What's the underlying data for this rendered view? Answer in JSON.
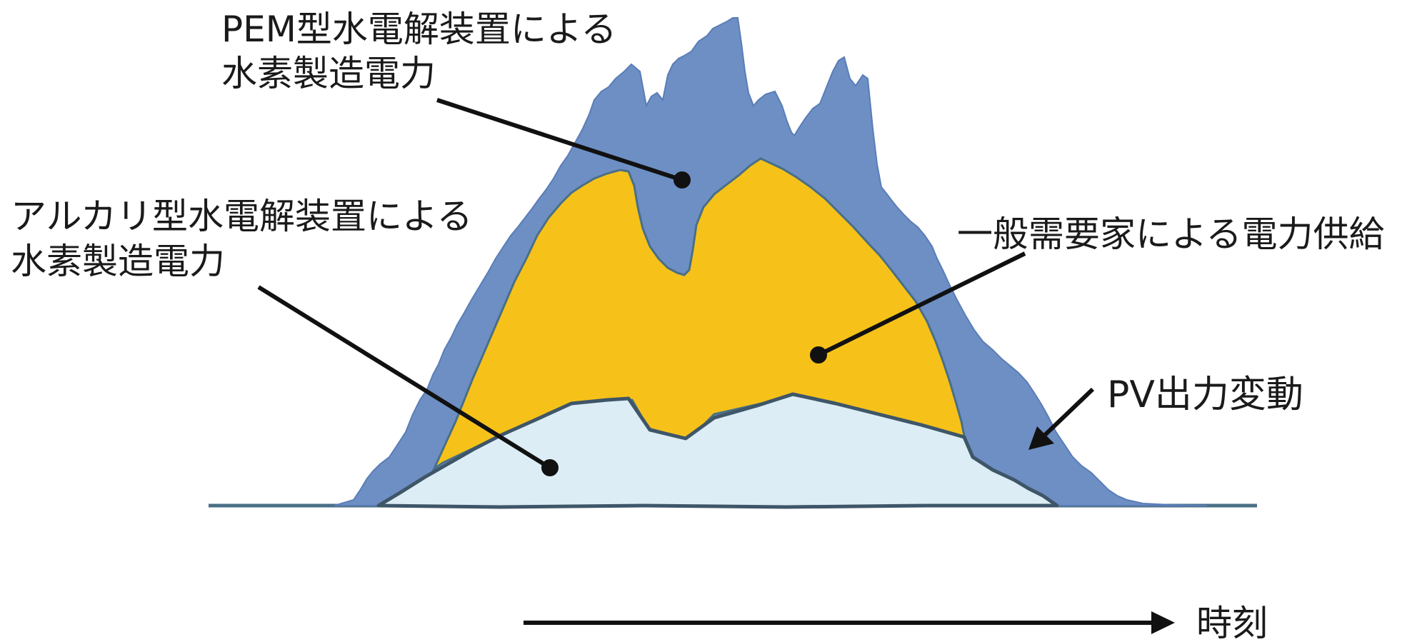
{
  "labels": {
    "pem_line1": "PEM型水電解装置による",
    "pem_line2": "水素製造電力",
    "alkaline_line1": "アルカリ型水電解装置による",
    "alkaline_line2": "水素製造電力",
    "general_supply": "一般需要家による電力供給",
    "pv_variation": "PV出力変動",
    "time_axis": "時刻"
  },
  "colors": {
    "pv_area": "#6d8fc4",
    "pv_area_dark": "#5a7db7",
    "general_area": "#f6c21a",
    "alkaline_area": "#dcedf6",
    "outline": "#3f5668",
    "baseline": "#4a6f86",
    "annotation": "#111111"
  }
}
